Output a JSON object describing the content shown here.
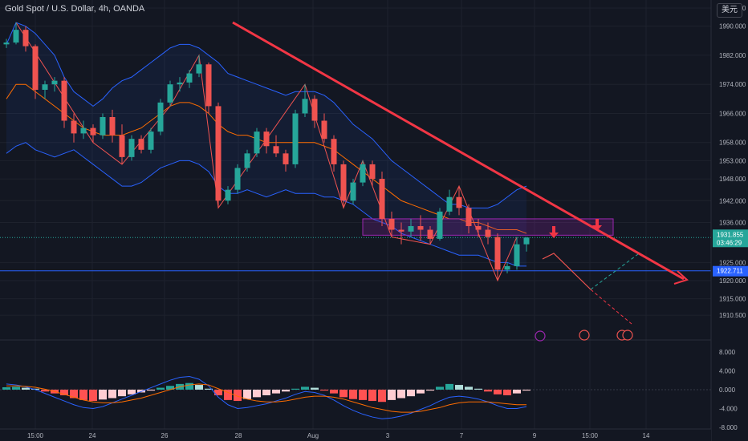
{
  "header": {
    "title": "Gold Spot / U.S. Dollar, 4h, OANDA"
  },
  "currency_button": {
    "label": "美元"
  },
  "colors": {
    "background": "#131722",
    "up": "#26a69a",
    "down": "#ef5350",
    "bollinger": "#2962ff",
    "basis": "#ff6d00",
    "trendline": "#f23645",
    "support": "#2962ff",
    "zone": "#9c27b0",
    "projection_down": "#f23645",
    "projection_up": "#26a69a"
  },
  "chart_data": [
    {
      "type": "candlestick",
      "title": "Gold Spot / U.S. Dollar, 4h, OANDA",
      "ylim": [
        1905,
        1995
      ],
      "y_ticks": [
        "1995.000",
        "1990.000",
        "1982.000",
        "1974.000",
        "1966.000",
        "1958.000",
        "1953.000",
        "1948.000",
        "1942.000",
        "1936.000",
        "1925.000",
        "1920.000",
        "1915.000",
        "1910.500"
      ],
      "x_ticks": [
        "15:00",
        "24",
        "26",
        "28",
        "Aug",
        "3",
        "7",
        "9",
        "15:00",
        "14"
      ],
      "candles": [
        [
          1985,
          1986.5,
          1984,
          1985.5
        ],
        [
          1985.5,
          1991,
          1985,
          1989
        ],
        [
          1989,
          1990,
          1983,
          1984.5
        ],
        [
          1984.5,
          1985,
          1970,
          1972.5
        ],
        [
          1972.5,
          1975,
          1970,
          1974
        ],
        [
          1974,
          1976,
          1972,
          1975
        ],
        [
          1975,
          1976,
          1962,
          1964
        ],
        [
          1964,
          1966,
          1958,
          1960.5
        ],
        [
          1960.5,
          1964,
          1959,
          1962
        ],
        [
          1962,
          1963,
          1958,
          1960
        ],
        [
          1960,
          1966,
          1959,
          1965
        ],
        [
          1965,
          1967,
          1958,
          1960
        ],
        [
          1960,
          1963,
          1952,
          1954
        ],
        [
          1954,
          1960,
          1953,
          1959
        ],
        [
          1959,
          1960,
          1955,
          1956
        ],
        [
          1956,
          1962,
          1955,
          1961
        ],
        [
          1961,
          1970,
          1960,
          1969
        ],
        [
          1969,
          1975,
          1968,
          1974
        ],
        [
          1974,
          1976,
          1972,
          1974.5
        ],
        [
          1974.5,
          1978,
          1973,
          1977
        ],
        [
          1977,
          1982,
          1976,
          1979.5
        ],
        [
          1979.5,
          1980,
          1966,
          1968
        ],
        [
          1968,
          1969,
          1940,
          1942
        ],
        [
          1942,
          1946,
          1941,
          1945
        ],
        [
          1945,
          1952,
          1944,
          1951
        ],
        [
          1951,
          1956,
          1950,
          1955
        ],
        [
          1955,
          1962,
          1954,
          1961
        ],
        [
          1961,
          1962,
          1955,
          1957
        ],
        [
          1957,
          1960,
          1954,
          1955
        ],
        [
          1955,
          1956,
          1950,
          1952
        ],
        [
          1952,
          1967,
          1951,
          1966
        ],
        [
          1966,
          1974,
          1965,
          1970
        ],
        [
          1970,
          1971,
          1962,
          1964
        ],
        [
          1964,
          1966,
          1958,
          1959
        ],
        [
          1959,
          1960,
          1950,
          1952
        ],
        [
          1952,
          1953,
          1940,
          1942
        ],
        [
          1942,
          1948,
          1941,
          1947
        ],
        [
          1947,
          1953,
          1946,
          1952
        ],
        [
          1952,
          1953,
          1946,
          1948
        ],
        [
          1948,
          1950,
          1935,
          1937
        ],
        [
          1937,
          1939,
          1932,
          1934
        ],
        [
          1934,
          1936,
          1930,
          1933.5
        ],
        [
          1933.5,
          1937,
          1932,
          1935
        ],
        [
          1935,
          1938,
          1931,
          1934
        ],
        [
          1934,
          1935,
          1930,
          1931.5
        ],
        [
          1931.5,
          1940,
          1931,
          1939
        ],
        [
          1939,
          1945,
          1938,
          1943
        ],
        [
          1943,
          1946,
          1938,
          1940
        ],
        [
          1940,
          1941,
          1933,
          1935
        ],
        [
          1935,
          1937,
          1932,
          1934
        ],
        [
          1934,
          1936,
          1930,
          1932
        ],
        [
          1932,
          1933,
          1920,
          1923
        ],
        [
          1923,
          1925,
          1922,
          1924
        ],
        [
          1924,
          1932,
          1923,
          1930
        ],
        [
          1930,
          1932,
          1928,
          1931.855
        ]
      ],
      "bollinger": {
        "upper": [
          1985,
          1991,
          1990,
          1988,
          1985,
          1982,
          1976,
          1972,
          1970,
          1968,
          1970,
          1973,
          1975,
          1976,
          1978,
          1980,
          1982,
          1984,
          1985,
          1985,
          1984,
          1982,
          1980,
          1977,
          1976,
          1975,
          1974,
          1973,
          1972,
          1971,
          1972,
          1972,
          1972,
          1971,
          1969,
          1966,
          1963,
          1961,
          1959,
          1956,
          1953,
          1951,
          1949,
          1947,
          1945,
          1943,
          1941,
          1941,
          1940,
          1940,
          1940,
          1941,
          1943,
          1945,
          1946
        ],
        "basis": [
          1970,
          1974,
          1974,
          1972,
          1970,
          1968,
          1966,
          1964,
          1962,
          1961,
          1960,
          1960,
          1960,
          1961,
          1962,
          1964,
          1966,
          1968,
          1969,
          1969,
          1968,
          1966,
          1963,
          1961,
          1960,
          1960,
          1959,
          1958,
          1958,
          1958,
          1958,
          1958,
          1958,
          1957,
          1956,
          1954,
          1952,
          1950,
          1948,
          1946,
          1944,
          1942,
          1941,
          1940,
          1939,
          1938,
          1937,
          1937,
          1936,
          1936,
          1935,
          1934,
          1934,
          1934,
          1933
        ],
        "lower": [
          1955,
          1957,
          1958,
          1956,
          1955,
          1954,
          1955,
          1956,
          1954,
          1952,
          1950,
          1948,
          1946,
          1946,
          1947,
          1949,
          1951,
          1952,
          1953,
          1953,
          1952,
          1950,
          1946,
          1944,
          1944,
          1945,
          1944,
          1943,
          1944,
          1945,
          1944,
          1944,
          1944,
          1943,
          1943,
          1942,
          1941,
          1939,
          1937,
          1936,
          1935,
          1933,
          1932,
          1931,
          1930,
          1929,
          1928,
          1927,
          1927,
          1927,
          1926,
          1925,
          1925,
          1924,
          1924
        ]
      },
      "price_labels": [
        {
          "value": 1931.855,
          "text": "1931.855",
          "sub": "03:46:29"
        },
        {
          "value": 1922.711,
          "text": "1922.711"
        }
      ],
      "support_level": 1922.711,
      "resistance_zone": [
        1932.5,
        1937
      ],
      "trendline": [
        [
          0,
          1992
        ],
        [
          55,
          1938
        ]
      ],
      "projection": [
        [
          55,
          1931.855
        ],
        [
          58,
          1937
        ],
        [
          63,
          1925
        ],
        [
          66,
          1918
        ],
        [
          63,
          1925
        ],
        [
          68,
          1932
        ]
      ]
    },
    {
      "type": "histogram",
      "ylim": [
        -8,
        9
      ],
      "y_ticks": [
        "8.000",
        "4.000",
        "0.000",
        "-4.000",
        "-8.000"
      ],
      "values": [
        0.5,
        0.6,
        0.4,
        0.2,
        -0.4,
        -0.8,
        -1.2,
        -1.8,
        -2.2,
        -2.4,
        -2.1,
        -1.8,
        -1.4,
        -1.0,
        -0.6,
        -0.2,
        0.4,
        0.8,
        1.2,
        1.4,
        1.0,
        0.2,
        -1.2,
        -2.2,
        -2.4,
        -2.0,
        -1.6,
        -1.2,
        -0.8,
        -0.4,
        0.2,
        0.6,
        0.4,
        -0.2,
        -0.8,
        -1.6,
        -2.0,
        -2.2,
        -2.4,
        -2.6,
        -2.2,
        -1.8,
        -1.4,
        -0.8,
        -0.2,
        0.6,
        1.2,
        1.0,
        0.6,
        0.2,
        -0.4,
        -1.0,
        -1.2,
        -0.8,
        -0.2
      ],
      "macd": [
        1.2,
        1.0,
        0.6,
        0.0,
        -0.8,
        -1.6,
        -2.4,
        -3.2,
        -3.8,
        -4.0,
        -3.6,
        -2.8,
        -2.0,
        -1.2,
        -0.4,
        0.4,
        1.2,
        2.0,
        2.6,
        2.8,
        2.2,
        0.8,
        -1.6,
        -3.2,
        -4.0,
        -3.8,
        -3.4,
        -3.0,
        -2.4,
        -1.8,
        -1.0,
        -0.4,
        -0.6,
        -1.2,
        -2.2,
        -3.4,
        -4.4,
        -5.2,
        -5.8,
        -6.2,
        -6.0,
        -5.6,
        -5.0,
        -4.2,
        -3.4,
        -2.4,
        -1.6,
        -1.4,
        -1.6,
        -2.0,
        -2.6,
        -3.4,
        -4.0,
        -4.0,
        -3.6
      ],
      "signal": [
        0.8,
        0.8,
        0.7,
        0.5,
        0.1,
        -0.4,
        -1.0,
        -1.6,
        -2.2,
        -2.6,
        -2.8,
        -2.8,
        -2.6,
        -2.2,
        -1.8,
        -1.2,
        -0.6,
        0.0,
        0.6,
        1.0,
        1.2,
        1.0,
        0.2,
        -0.6,
        -1.4,
        -2.0,
        -2.4,
        -2.6,
        -2.6,
        -2.4,
        -2.0,
        -1.6,
        -1.4,
        -1.4,
        -1.6,
        -2.0,
        -2.6,
        -3.2,
        -3.8,
        -4.2,
        -4.6,
        -4.8,
        -4.8,
        -4.6,
        -4.2,
        -3.8,
        -3.2,
        -2.8,
        -2.6,
        -2.6,
        -2.6,
        -2.8,
        -3.0,
        -3.2,
        -3.2
      ]
    }
  ]
}
